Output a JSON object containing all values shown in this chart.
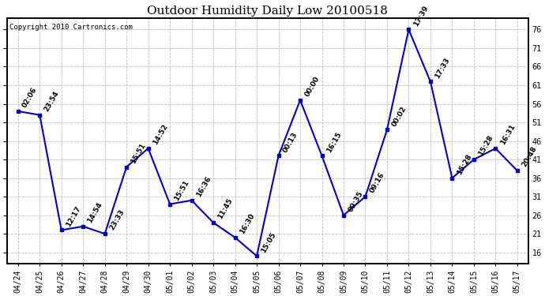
{
  "title": "Outdoor Humidity Daily Low 20100518",
  "copyright": "Copyright 2010 Cartronics.com",
  "x_labels": [
    "04/24",
    "04/25",
    "04/26",
    "04/27",
    "04/28",
    "04/29",
    "04/30",
    "05/01",
    "05/02",
    "05/03",
    "05/04",
    "05/05",
    "05/06",
    "05/07",
    "05/08",
    "05/09",
    "05/10",
    "05/11",
    "05/12",
    "05/13",
    "05/14",
    "05/15",
    "05/16",
    "05/17"
  ],
  "y_values": [
    54,
    53,
    22,
    23,
    21,
    39,
    44,
    29,
    30,
    24,
    20,
    15,
    42,
    57,
    42,
    26,
    31,
    49,
    76,
    62,
    36,
    41,
    44,
    38
  ],
  "annotations": [
    "02:06",
    "23:54",
    "12:17",
    "14:54",
    "23:33",
    "15:51",
    "14:52",
    "15:51",
    "16:36",
    "11:45",
    "16:30",
    "15:05",
    "00:13",
    "00:00",
    "16:15",
    "09:35",
    "09:16",
    "00:02",
    "17:39",
    "17:33",
    "15:28",
    "15:28",
    "16:31",
    "20:48"
  ],
  "line_color": "#0000CC",
  "marker_color": "#0000CC",
  "bg_color": "#ffffff",
  "grid_color": "#c0c0c0",
  "ylim_min": 13,
  "ylim_max": 79,
  "yticks": [
    76,
    71,
    66,
    61,
    56,
    51,
    46,
    41,
    36,
    31,
    26,
    21,
    16
  ],
  "title_fontsize": 11,
  "annot_fontsize": 6.5,
  "tick_fontsize": 7,
  "copyright_fontsize": 6.5
}
